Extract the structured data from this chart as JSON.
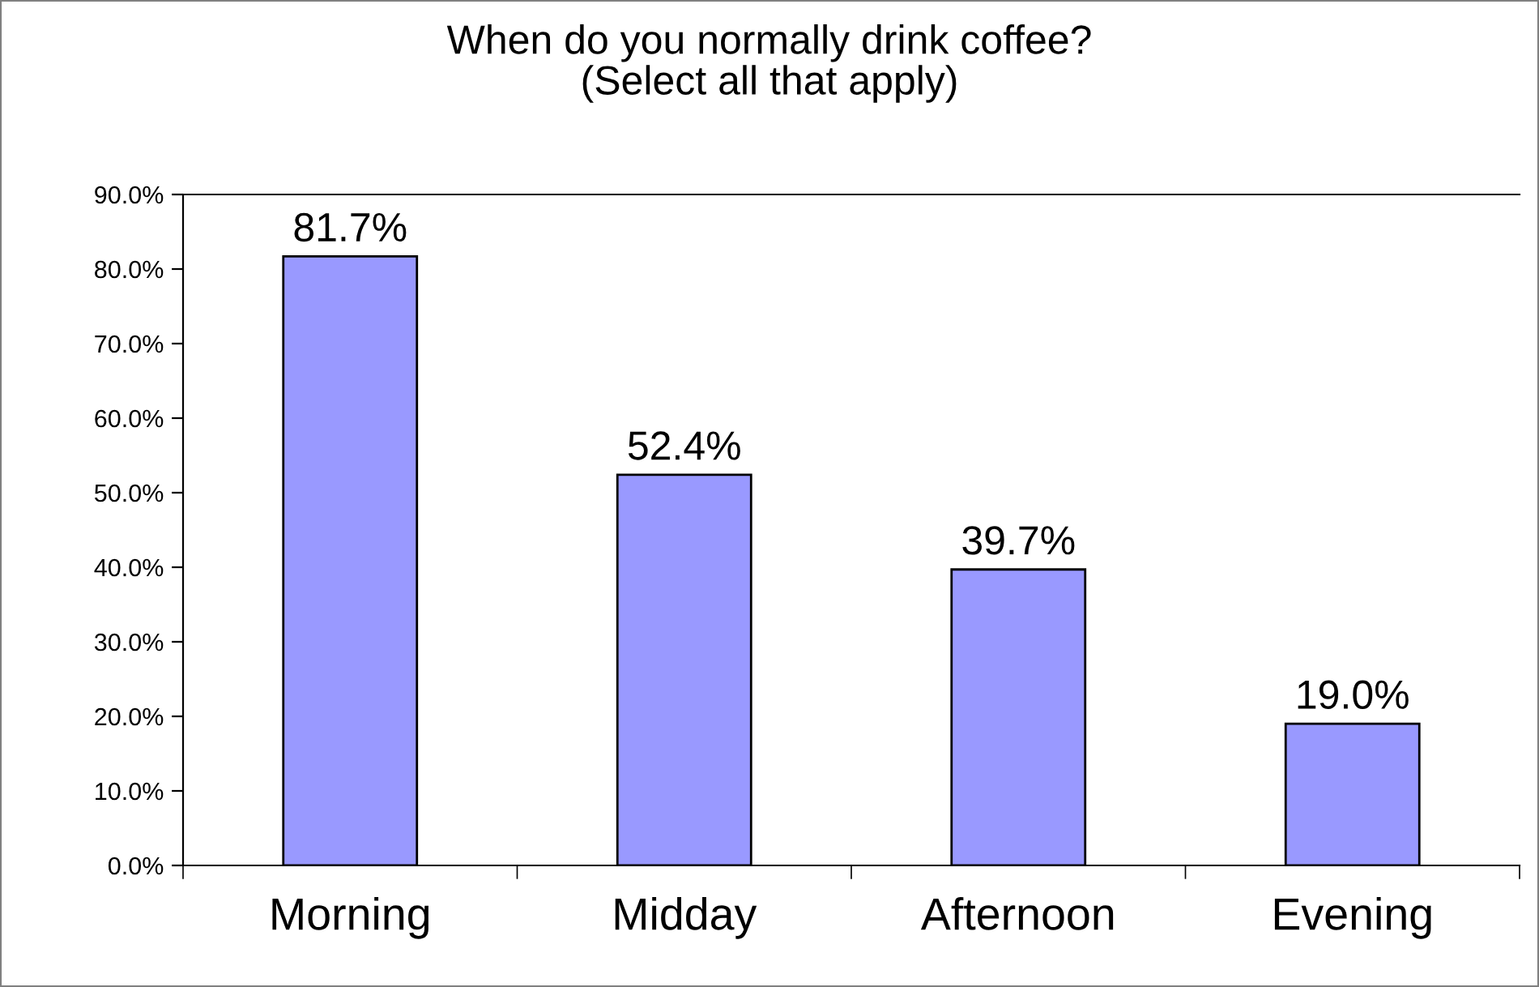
{
  "chart_data": {
    "type": "bar",
    "title": "When do you normally drink coffee?\n(Select all that apply)",
    "categories": [
      "Morning",
      "Midday",
      "Afternoon",
      "Evening"
    ],
    "values": [
      81.7,
      52.4,
      39.7,
      19.0
    ],
    "value_labels": [
      "81.7%",
      "52.4%",
      "39.7%",
      "19.0%"
    ],
    "color": "#9999ff",
    "ylim": [
      0,
      90
    ],
    "yticks": [
      {
        "value": 0,
        "label": "0.0%"
      },
      {
        "value": 10,
        "label": "10.0%"
      },
      {
        "value": 20,
        "label": "20.0%"
      },
      {
        "value": 30,
        "label": "30.0%"
      },
      {
        "value": 40,
        "label": "40.0%"
      },
      {
        "value": 50,
        "label": "50.0%"
      },
      {
        "value": 60,
        "label": "60.0%"
      },
      {
        "value": 70,
        "label": "70.0%"
      },
      {
        "value": 80,
        "label": "80.0%"
      },
      {
        "value": 90,
        "label": "90.0%"
      }
    ],
    "grid": false
  }
}
